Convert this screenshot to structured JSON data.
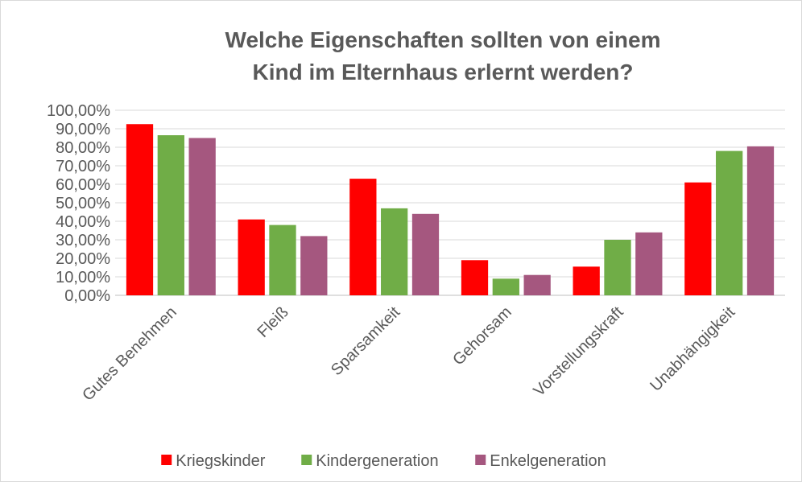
{
  "chart_data": {
    "type": "bar",
    "title": "Welche Eigenschaften sollten von einem Kind im Elternhaus erlernt werden?",
    "categories": [
      "Gutes Benehmen",
      "Fleiß",
      "Sparsamkeit",
      "Gehorsam",
      "Vorstellungskraft",
      "Unabhängigkeit"
    ],
    "series": [
      {
        "name": "Kriegskinder",
        "color": "#ff0000",
        "values": [
          92.5,
          41,
          63,
          19,
          15.5,
          61
        ]
      },
      {
        "name": "Kindergeneration",
        "color": "#70ad47",
        "values": [
          86.5,
          38,
          47,
          9,
          30,
          78
        ]
      },
      {
        "name": "Enkelgeneration",
        "color": "#a5577f",
        "values": [
          85,
          32,
          44,
          11,
          34,
          80.5
        ]
      }
    ],
    "ylim": [
      0,
      100
    ],
    "yticks": [
      {
        "value": 0,
        "label": "0,00%"
      },
      {
        "value": 10,
        "label": "10,00%"
      },
      {
        "value": 20,
        "label": "20,00%"
      },
      {
        "value": 30,
        "label": "30,00%"
      },
      {
        "value": 40,
        "label": "40,00%"
      },
      {
        "value": 50,
        "label": "50,00%"
      },
      {
        "value": 60,
        "label": "60,00%"
      },
      {
        "value": 70,
        "label": "70,00%"
      },
      {
        "value": 80,
        "label": "80,00%"
      },
      {
        "value": 90,
        "label": "90,00%"
      },
      {
        "value": 100,
        "label": "100,00%"
      }
    ],
    "grid": true,
    "legend": "bottom"
  }
}
